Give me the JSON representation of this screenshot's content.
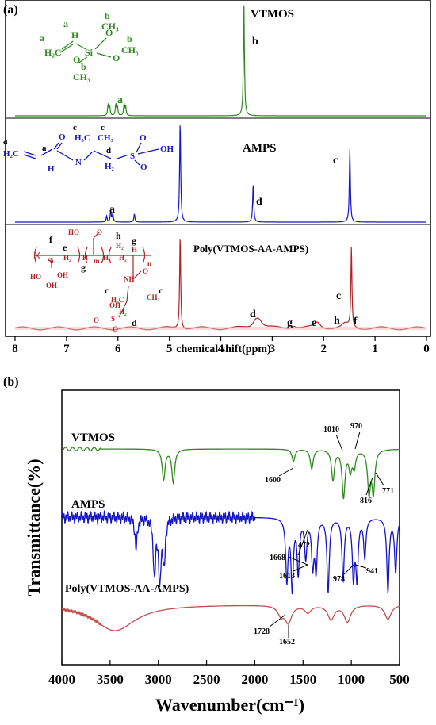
{
  "chart_data": [
    {
      "panel_label": "(a)",
      "type": "line",
      "xlabel": "chemical shift(ppm)",
      "xlim": [
        8,
        0
      ],
      "x_ticks": [
        8,
        7,
        6,
        5,
        4,
        3,
        2,
        1,
        0
      ],
      "colors": {
        "VTMOS": "#2e8b1e",
        "AMPS": "#1515c8",
        "Poly": "#b22222"
      },
      "series": [
        {
          "name": "VTMOS",
          "color": "#2e8b1e",
          "peaks": [
            {
              "x": 6.19,
              "h": 0.1
            },
            {
              "x": 6.16,
              "h": 0.08
            },
            {
              "x": 6.04,
              "h": 0.1
            },
            {
              "x": 6.01,
              "h": 0.08
            },
            {
              "x": 5.88,
              "h": 0.1
            },
            {
              "x": 5.85,
              "h": 0.08
            },
            {
              "x": 3.55,
              "h": 1.0
            }
          ],
          "peak_labels": [
            {
              "text": "a",
              "x": 6.0
            },
            {
              "text": "b",
              "x": 3.3
            }
          ]
        },
        {
          "name": "AMPS",
          "color": "#1515c8",
          "peaks": [
            {
              "x": 6.22,
              "h": 0.06
            },
            {
              "x": 6.14,
              "h": 0.1
            },
            {
              "x": 6.1,
              "h": 0.08
            },
            {
              "x": 5.68,
              "h": 0.08
            },
            {
              "x": 4.79,
              "h": 1.0
            },
            {
              "x": 3.37,
              "h": 0.38
            },
            {
              "x": 1.49,
              "h": 0.72
            }
          ],
          "peak_labels": [
            {
              "text": "a",
              "x": 6.1
            },
            {
              "text": "d",
              "x": 3.2
            },
            {
              "text": "c",
              "x": 1.7
            }
          ]
        },
        {
          "name": "Poly(VTMOS-AA-AMPS)",
          "color": "#b22222",
          "peaks": [
            {
              "x": 4.79,
              "h": 1.0
            },
            {
              "x": 3.32,
              "h": 0.08
            },
            {
              "x": 3.25,
              "h": 0.07
            },
            {
              "x": 2.58,
              "h": 0.03
            },
            {
              "x": 2.12,
              "h": 0.06
            },
            {
              "x": 1.58,
              "h": 0.04
            },
            {
              "x": 1.46,
              "h": 0.85
            }
          ],
          "peak_labels": [
            {
              "text": "d",
              "x": 3.3
            },
            {
              "text": "g",
              "x": 2.6
            },
            {
              "text": "e",
              "x": 2.15
            },
            {
              "text": "h",
              "x": 1.72
            },
            {
              "text": "c",
              "x": 1.6
            },
            {
              "text": "f",
              "x": 1.28
            }
          ]
        }
      ],
      "structures": {
        "VTMOS": [
          "a",
          "a",
          "H₂C",
          "H",
          "Si",
          "b",
          "O",
          "CH₃",
          "O",
          "CH₃",
          "b",
          "O",
          "b",
          "CH₃"
        ],
        "AMPS": [
          "c",
          "c",
          "a",
          "a",
          "H₂C",
          "O",
          "H₃C",
          "CH₃",
          "d",
          "O",
          "OH",
          "H",
          "N",
          "H₂",
          "S",
          "O"
        ],
        "Poly": [
          "HO",
          "O",
          "h",
          "g",
          "H₂",
          "H",
          "f",
          "e",
          "Si",
          "H₂",
          "H",
          "m",
          "H",
          "H₂",
          "n",
          "HO",
          "OH",
          "OH",
          "g",
          "O",
          "NH",
          "c",
          "c",
          "H₃C",
          "CH₃",
          "OH",
          "H₂",
          "O",
          "S",
          "d",
          "O"
        ]
      }
    },
    {
      "panel_label": "(b)",
      "type": "line",
      "xlabel": "Wavenumber(cm⁻¹)",
      "ylabel": "Transmittance(%)",
      "xlim": [
        4000,
        500
      ],
      "x_ticks": [
        4000,
        3500,
        3000,
        2500,
        2000,
        1500,
        1000,
        500
      ],
      "series": [
        {
          "name": "VTMOS",
          "color": "#2e8b1e",
          "bands": [
            {
              "x": 2945,
              "depth": 0.55
            },
            {
              "x": 2845,
              "depth": 0.6
            },
            {
              "x": 1600,
              "depth": 0.22
            },
            {
              "x": 1410,
              "depth": 0.35
            },
            {
              "x": 1190,
              "depth": 0.55
            },
            {
              "x": 1080,
              "depth": 0.85
            },
            {
              "x": 1010,
              "depth": 0.35
            },
            {
              "x": 970,
              "depth": 0.3
            },
            {
              "x": 816,
              "depth": 0.75
            },
            {
              "x": 771,
              "depth": 0.75
            }
          ],
          "annotations": [
            "1600",
            "1010",
            "970",
            "816",
            "771"
          ]
        },
        {
          "name": "AMPS",
          "color": "#1515c8",
          "bands": [
            {
              "x": 3230,
              "depth": 0.4
            },
            {
              "x": 3040,
              "depth": 0.75
            },
            {
              "x": 2985,
              "depth": 0.85
            },
            {
              "x": 2940,
              "depth": 0.6
            },
            {
              "x": 1668,
              "depth": 0.8
            },
            {
              "x": 1613,
              "depth": 0.9
            },
            {
              "x": 1550,
              "depth": 0.7
            },
            {
              "x": 1472,
              "depth": 0.5
            },
            {
              "x": 1400,
              "depth": 0.6
            },
            {
              "x": 1365,
              "depth": 0.65
            },
            {
              "x": 1240,
              "depth": 0.95
            },
            {
              "x": 1085,
              "depth": 0.8
            },
            {
              "x": 978,
              "depth": 0.75
            },
            {
              "x": 941,
              "depth": 0.75
            },
            {
              "x": 860,
              "depth": 0.5
            },
            {
              "x": 620,
              "depth": 0.95
            },
            {
              "x": 540,
              "depth": 0.7
            }
          ],
          "annotations": [
            "1668",
            "1472",
            "1613",
            "978",
            "941"
          ]
        },
        {
          "name": "Poly(VTMOS-AA-AMPS)",
          "color": "#c0504d",
          "bands": [
            {
              "x": 3450,
              "depth": 0.55
            },
            {
              "x": 1728,
              "depth": 0.2
            },
            {
              "x": 1652,
              "depth": 0.35
            },
            {
              "x": 1450,
              "depth": 0.15
            },
            {
              "x": 1210,
              "depth": 0.3
            },
            {
              "x": 1040,
              "depth": 0.35
            },
            {
              "x": 620,
              "depth": 0.3
            }
          ],
          "annotations": [
            "1728",
            "1652"
          ]
        }
      ]
    }
  ]
}
